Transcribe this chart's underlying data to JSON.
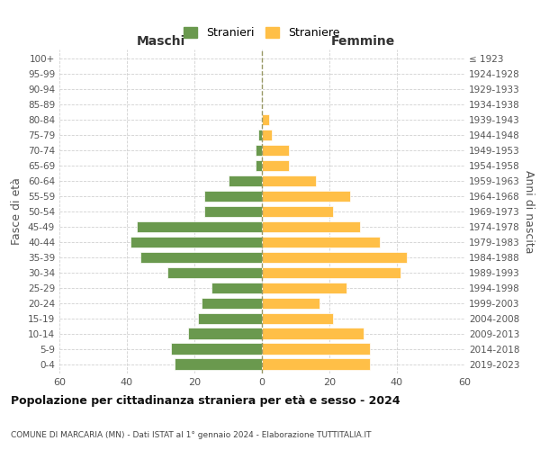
{
  "age_groups": [
    "0-4",
    "5-9",
    "10-14",
    "15-19",
    "20-24",
    "25-29",
    "30-34",
    "35-39",
    "40-44",
    "45-49",
    "50-54",
    "55-59",
    "60-64",
    "65-69",
    "70-74",
    "75-79",
    "80-84",
    "85-89",
    "90-94",
    "95-99",
    "100+"
  ],
  "birth_years": [
    "2019-2023",
    "2014-2018",
    "2009-2013",
    "2004-2008",
    "1999-2003",
    "1994-1998",
    "1989-1993",
    "1984-1988",
    "1979-1983",
    "1974-1978",
    "1969-1973",
    "1964-1968",
    "1959-1963",
    "1954-1958",
    "1949-1953",
    "1944-1948",
    "1939-1943",
    "1934-1938",
    "1929-1933",
    "1924-1928",
    "≤ 1923"
  ],
  "maschi": [
    26,
    27,
    22,
    19,
    18,
    15,
    28,
    36,
    39,
    37,
    17,
    17,
    10,
    2,
    2,
    1,
    0,
    0,
    0,
    0,
    0
  ],
  "femmine": [
    32,
    32,
    30,
    21,
    17,
    25,
    41,
    43,
    35,
    29,
    21,
    26,
    16,
    8,
    8,
    3,
    2,
    0,
    0,
    0,
    0
  ],
  "maschi_color": "#6a994e",
  "femmine_color": "#ffbf47",
  "background_color": "#ffffff",
  "grid_color": "#cccccc",
  "title": "Popolazione per cittadinanza straniera per età e sesso - 2024",
  "subtitle": "COMUNE DI MARCARIA (MN) - Dati ISTAT al 1° gennaio 2024 - Elaborazione TUTTITALIA.IT",
  "xlabel_left": "Maschi",
  "xlabel_right": "Femmine",
  "ylabel_left": "Fasce di età",
  "ylabel_right": "Anni di nascita",
  "legend_maschi": "Stranieri",
  "legend_femmine": "Straniere",
  "xlim": 60
}
